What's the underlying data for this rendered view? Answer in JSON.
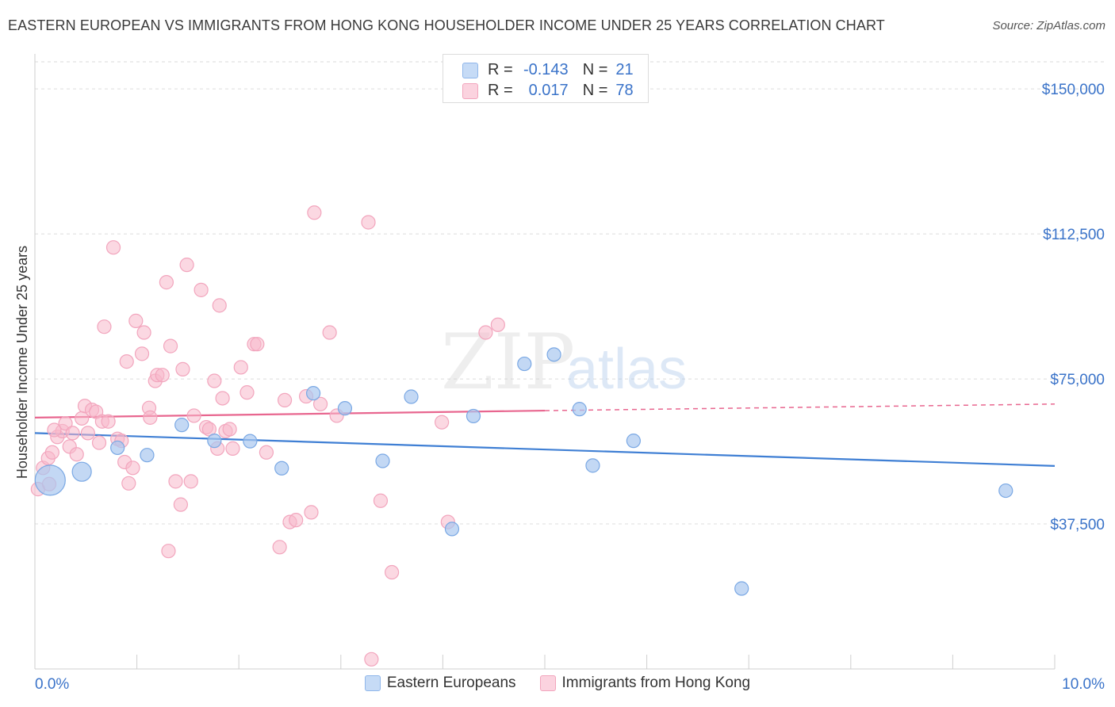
{
  "title": "EASTERN EUROPEAN VS IMMIGRANTS FROM HONG KONG HOUSEHOLDER INCOME UNDER 25 YEARS CORRELATION CHART",
  "source": "Source: ZipAtlas.com",
  "watermark": {
    "zip": "ZIP",
    "atlas": "atlas"
  },
  "stats": {
    "r_label": "R =",
    "n_label": "N =",
    "rows": [
      {
        "r": "-0.143",
        "n": "21",
        "color": "#aac8f0"
      },
      {
        "r": "0.017",
        "n": "78",
        "color": "#f7b8cb"
      }
    ]
  },
  "legend": {
    "items": [
      {
        "label": "Eastern Europeans",
        "color": "#aac8f0"
      },
      {
        "label": "Immigrants from Hong Kong",
        "color": "#f7b8cb"
      }
    ]
  },
  "chart_data": {
    "type": "scatter",
    "title": "EASTERN EUROPEAN VS IMMIGRANTS FROM HONG KONG HOUSEHOLDER INCOME UNDER 25 YEARS CORRELATION CHART",
    "xlabel": "",
    "ylabel": "Householder Income Under 25 years",
    "xlim": [
      0,
      10
    ],
    "ylim": [
      0,
      157000
    ],
    "x_tick_labels": [
      "0.0%",
      "10.0%"
    ],
    "y_ticks": [
      37500,
      75000,
      112500,
      150000
    ],
    "y_tick_labels": [
      "$37,500",
      "$75,000",
      "$112,500",
      "$150,000"
    ],
    "grid": "horizontal dashed",
    "legend_position": "bottom",
    "colors": {
      "blue": "#3f7fd4",
      "pink": "#e8668f",
      "blue_fill": "#aac8f0",
      "pink_fill": "#f7b8cb",
      "axis_text": "#3a73c9"
    },
    "series": [
      {
        "name": "Eastern Europeans",
        "color": "#3f7fd4",
        "points": [
          {
            "x": 0.15,
            "y": 48800,
            "big": 2
          },
          {
            "x": 0.46,
            "y": 51000,
            "big": 1
          },
          {
            "x": 0.81,
            "y": 57200
          },
          {
            "x": 1.1,
            "y": 55300
          },
          {
            "x": 1.44,
            "y": 63100
          },
          {
            "x": 1.76,
            "y": 59000
          },
          {
            "x": 2.11,
            "y": 58900
          },
          {
            "x": 2.42,
            "y": 51900
          },
          {
            "x": 2.73,
            "y": 71300
          },
          {
            "x": 3.04,
            "y": 67400
          },
          {
            "x": 3.41,
            "y": 53800
          },
          {
            "x": 3.69,
            "y": 70400
          },
          {
            "x": 4.09,
            "y": 36200
          },
          {
            "x": 4.3,
            "y": 65400
          },
          {
            "x": 4.8,
            "y": 78900
          },
          {
            "x": 5.09,
            "y": 81300
          },
          {
            "x": 5.34,
            "y": 67200
          },
          {
            "x": 5.47,
            "y": 52600
          },
          {
            "x": 5.87,
            "y": 59000
          },
          {
            "x": 6.93,
            "y": 20800
          },
          {
            "x": 9.52,
            "y": 46100
          }
        ],
        "trendline": {
          "x": [
            0.0,
            10.0
          ],
          "y": [
            61000,
            52500
          ]
        }
      },
      {
        "name": "Immigrants from Hong Kong",
        "color": "#e8668f",
        "points": [
          {
            "x": 0.03,
            "y": 46500
          },
          {
            "x": 0.08,
            "y": 52000
          },
          {
            "x": 0.13,
            "y": 54500
          },
          {
            "x": 0.17,
            "y": 56000
          },
          {
            "x": 0.22,
            "y": 60000
          },
          {
            "x": 0.27,
            "y": 61500
          },
          {
            "x": 0.3,
            "y": 63500
          },
          {
            "x": 0.34,
            "y": 57500
          },
          {
            "x": 0.37,
            "y": 61000
          },
          {
            "x": 0.41,
            "y": 55500
          },
          {
            "x": 0.46,
            "y": 64800
          },
          {
            "x": 0.49,
            "y": 68000
          },
          {
            "x": 0.52,
            "y": 61000
          },
          {
            "x": 0.56,
            "y": 67000
          },
          {
            "x": 0.6,
            "y": 66500
          },
          {
            "x": 0.63,
            "y": 58500
          },
          {
            "x": 0.66,
            "y": 64000
          },
          {
            "x": 0.68,
            "y": 88500
          },
          {
            "x": 0.72,
            "y": 64000
          },
          {
            "x": 0.77,
            "y": 109000
          },
          {
            "x": 0.81,
            "y": 59500
          },
          {
            "x": 0.85,
            "y": 59000
          },
          {
            "x": 0.88,
            "y": 53500
          },
          {
            "x": 0.9,
            "y": 79500
          },
          {
            "x": 0.92,
            "y": 48000
          },
          {
            "x": 0.96,
            "y": 52000
          },
          {
            "x": 0.99,
            "y": 90000
          },
          {
            "x": 1.05,
            "y": 81500
          },
          {
            "x": 1.07,
            "y": 87000
          },
          {
            "x": 1.12,
            "y": 67500
          },
          {
            "x": 1.13,
            "y": 65000
          },
          {
            "x": 1.18,
            "y": 74500
          },
          {
            "x": 1.2,
            "y": 76000
          },
          {
            "x": 1.25,
            "y": 76000
          },
          {
            "x": 1.29,
            "y": 100000
          },
          {
            "x": 1.33,
            "y": 83500
          },
          {
            "x": 1.38,
            "y": 48500
          },
          {
            "x": 1.43,
            "y": 42500
          },
          {
            "x": 1.45,
            "y": 77500
          },
          {
            "x": 1.49,
            "y": 104500
          },
          {
            "x": 1.53,
            "y": 48500
          },
          {
            "x": 1.56,
            "y": 65500
          },
          {
            "x": 1.63,
            "y": 98000
          },
          {
            "x": 1.68,
            "y": 62500
          },
          {
            "x": 1.71,
            "y": 62000
          },
          {
            "x": 1.76,
            "y": 74500
          },
          {
            "x": 1.79,
            "y": 57000
          },
          {
            "x": 1.81,
            "y": 94000
          },
          {
            "x": 1.84,
            "y": 70000
          },
          {
            "x": 1.87,
            "y": 61500
          },
          {
            "x": 1.91,
            "y": 62000
          },
          {
            "x": 1.94,
            "y": 57000
          },
          {
            "x": 2.02,
            "y": 78000
          },
          {
            "x": 2.08,
            "y": 71500
          },
          {
            "x": 2.15,
            "y": 84000
          },
          {
            "x": 2.18,
            "y": 84000
          },
          {
            "x": 2.27,
            "y": 56000
          },
          {
            "x": 2.4,
            "y": 31500
          },
          {
            "x": 2.45,
            "y": 69500
          },
          {
            "x": 2.5,
            "y": 38000
          },
          {
            "x": 2.56,
            "y": 38500
          },
          {
            "x": 2.66,
            "y": 70500
          },
          {
            "x": 2.71,
            "y": 40500
          },
          {
            "x": 2.74,
            "y": 118000
          },
          {
            "x": 2.8,
            "y": 68500
          },
          {
            "x": 2.89,
            "y": 87000
          },
          {
            "x": 2.96,
            "y": 65500
          },
          {
            "x": 1.31,
            "y": 30500
          },
          {
            "x": 3.27,
            "y": 115500
          },
          {
            "x": 3.3,
            "y": 2500
          },
          {
            "x": 3.39,
            "y": 43500
          },
          {
            "x": 3.5,
            "y": 25000
          },
          {
            "x": 3.99,
            "y": 63800
          },
          {
            "x": 4.05,
            "y": 38000
          },
          {
            "x": 4.42,
            "y": 87000
          },
          {
            "x": 4.54,
            "y": 89000
          },
          {
            "x": 0.14,
            "y": 47800
          },
          {
            "x": 0.19,
            "y": 61800
          }
        ],
        "trendline": {
          "x": [
            0.0,
            5.0
          ],
          "y": [
            65000,
            66800
          ]
        },
        "trendline_extension": {
          "x": [
            5.0,
            10.0
          ],
          "y": [
            66800,
            68500
          ]
        }
      }
    ]
  }
}
